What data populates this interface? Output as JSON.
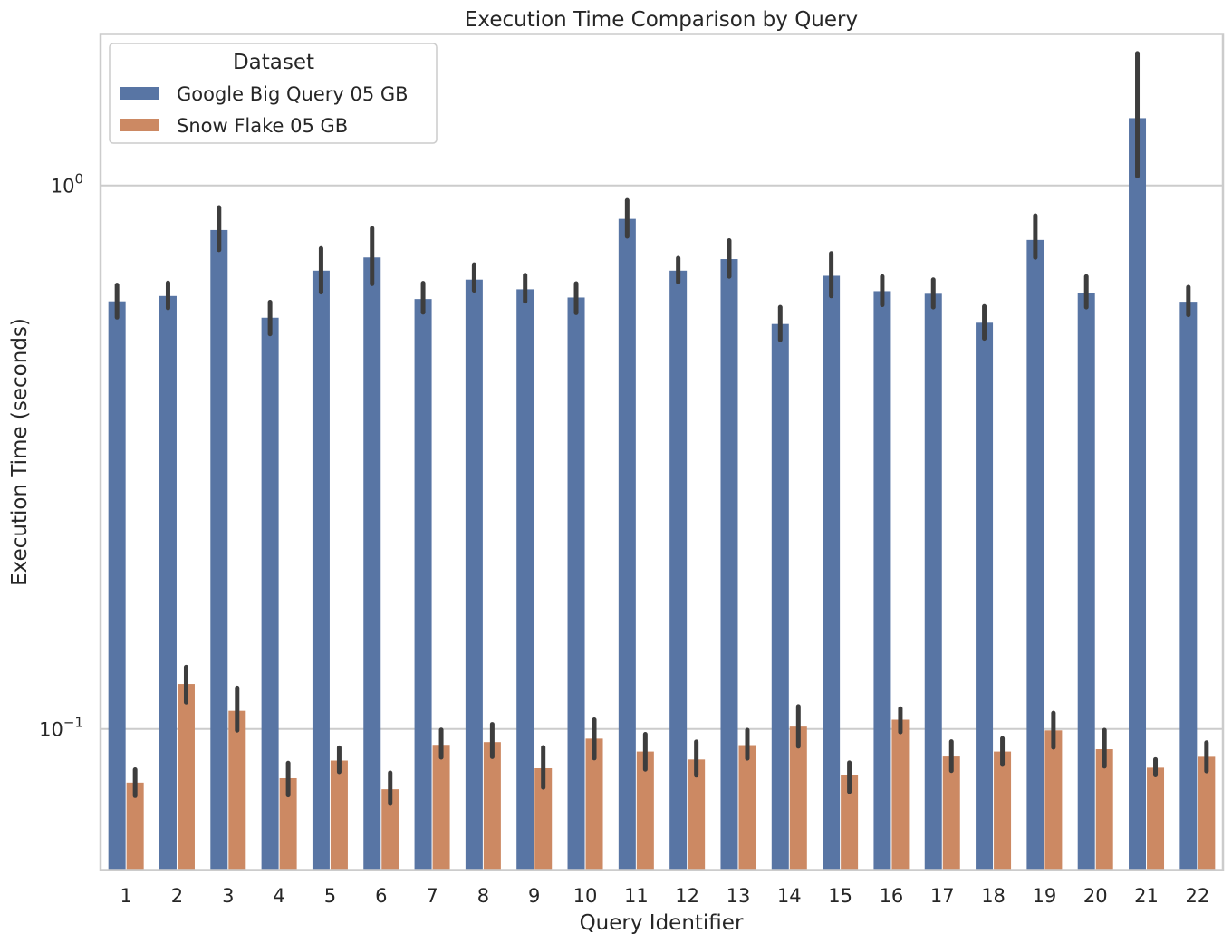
{
  "chart_data": {
    "type": "bar",
    "title": "Execution Time Comparison by Query",
    "xlabel": "Query Identifier",
    "ylabel": "Execution Time (seconds)",
    "yscale": "log",
    "ylim": [
      0.055,
      1.9
    ],
    "yticks": [
      {
        "value": 1.0,
        "base": "10",
        "exp": "0"
      },
      {
        "value": 0.1,
        "base": "10",
        "exp": "−1"
      }
    ],
    "grid": "horizontal",
    "legend": {
      "title": "Dataset",
      "position": "top-left"
    },
    "categories": [
      "1",
      "2",
      "3",
      "4",
      "5",
      "6",
      "7",
      "8",
      "9",
      "10",
      "11",
      "12",
      "13",
      "14",
      "15",
      "16",
      "17",
      "18",
      "19",
      "20",
      "21",
      "22"
    ],
    "series": [
      {
        "name": "Google Big Query 05 GB",
        "color": "#5875a4",
        "values": [
          0.612,
          0.626,
          0.828,
          0.571,
          0.697,
          0.737,
          0.618,
          0.671,
          0.644,
          0.622,
          0.868,
          0.697,
          0.732,
          0.556,
          0.682,
          0.639,
          0.632,
          0.559,
          0.794,
          0.633,
          1.33,
          0.611
        ],
        "ci_low": [
          0.572,
          0.595,
          0.761,
          0.533,
          0.636,
          0.659,
          0.584,
          0.641,
          0.612,
          0.583,
          0.806,
          0.664,
          0.68,
          0.52,
          0.626,
          0.603,
          0.597,
          0.523,
          0.737,
          0.597,
          1.04,
          0.578
        ],
        "ci_high": [
          0.656,
          0.662,
          0.911,
          0.61,
          0.766,
          0.834,
          0.661,
          0.715,
          0.684,
          0.66,
          0.939,
          0.735,
          0.792,
          0.597,
          0.75,
          0.68,
          0.671,
          0.599,
          0.88,
          0.68,
          1.75,
          0.65
        ]
      },
      {
        "name": "Snow Flake 05 GB",
        "color": "#cc8963",
        "values": [
          0.0797,
          0.121,
          0.108,
          0.0812,
          0.0875,
          0.0775,
          0.0935,
          0.0946,
          0.0847,
          0.096,
          0.0909,
          0.0879,
          0.0934,
          0.101,
          0.0822,
          0.104,
          0.089,
          0.0909,
          0.0994,
          0.0918,
          0.0849,
          0.0889
        ],
        "ci_low": [
          0.0754,
          0.112,
          0.0994,
          0.0756,
          0.0834,
          0.0729,
          0.0887,
          0.0889,
          0.0781,
          0.0884,
          0.0843,
          0.0822,
          0.0883,
          0.0929,
          0.0767,
          0.0987,
          0.0838,
          0.086,
          0.0925,
          0.0854,
          0.0823,
          0.0837
        ],
        "ci_high": [
          0.0842,
          0.13,
          0.119,
          0.0866,
          0.0924,
          0.0831,
          0.0996,
          0.102,
          0.0925,
          0.104,
          0.0978,
          0.0947,
          0.0995,
          0.11,
          0.0867,
          0.109,
          0.0948,
          0.0961,
          0.107,
          0.0995,
          0.0879,
          0.0944
        ]
      }
    ]
  }
}
